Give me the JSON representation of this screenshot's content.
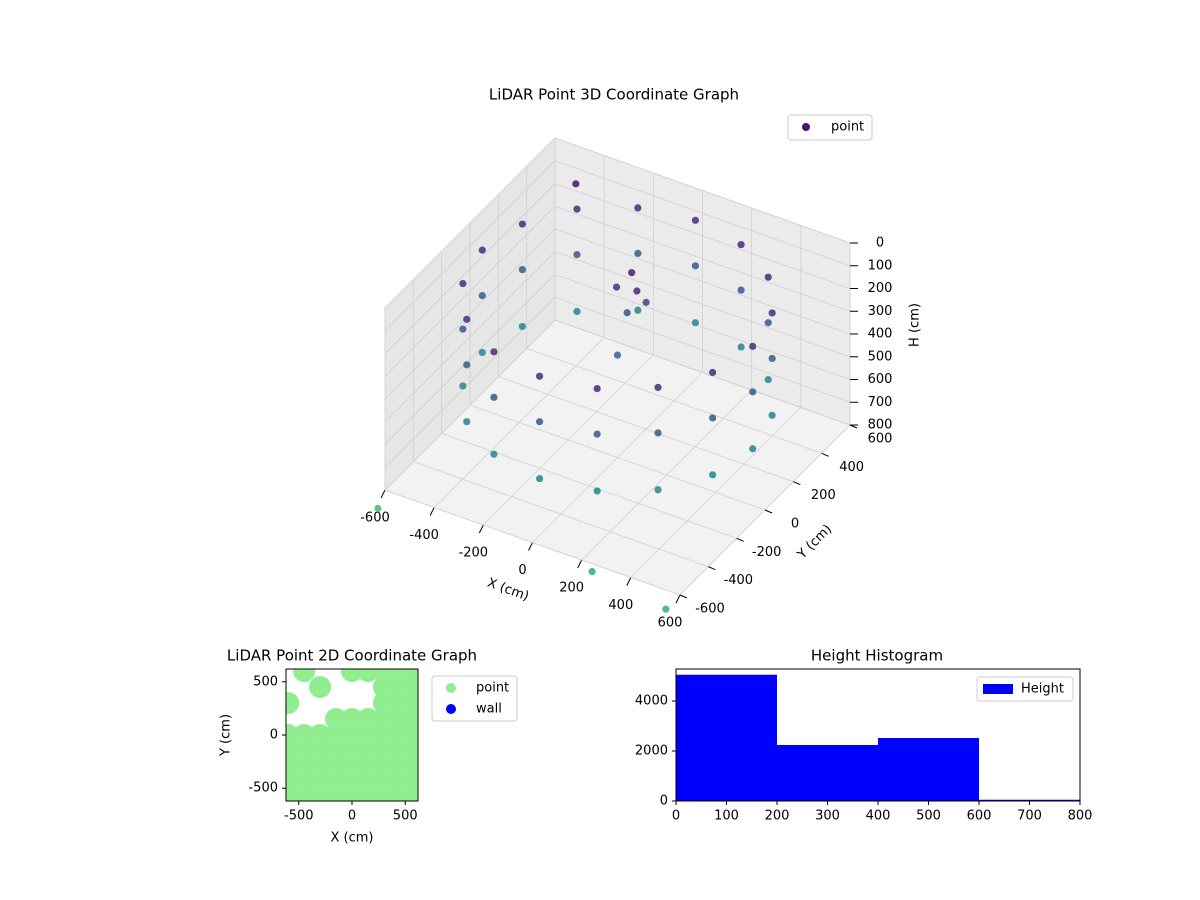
{
  "chart_data": [
    {
      "type": "scatter3d",
      "title": "LiDAR Point 3D Coordinate Graph",
      "xlabel": "X (cm)",
      "ylabel": "Y (cm)",
      "zlabel": "H (cm)",
      "xlim": [
        -600,
        600
      ],
      "xticks": [
        -600,
        -400,
        -200,
        0,
        200,
        400,
        600
      ],
      "ylim": [
        -600,
        600
      ],
      "yticks": [
        -600,
        -400,
        -200,
        0,
        200,
        400,
        600
      ],
      "zlim": [
        0,
        800
      ],
      "zticks": [
        0,
        100,
        200,
        300,
        400,
        500,
        600,
        700,
        800
      ],
      "zinverted": true,
      "grid": true,
      "legend": "upper right",
      "series": [
        {
          "name": "point",
          "color": "#46137a",
          "colormap": "viridis",
          "x": [
            550,
            508,
            389,
            210,
            0,
            -210,
            -389,
            -508,
            -550,
            -508,
            -389,
            -210,
            0,
            210,
            389,
            508,
            550,
            508,
            389,
            210,
            0,
            -210,
            -389,
            -508,
            -550,
            -508,
            -389,
            -210,
            0,
            210,
            389,
            508,
            550,
            508,
            389,
            210,
            0,
            -210,
            -389,
            -508,
            -550,
            -508,
            -389,
            -210,
            0,
            210,
            389,
            508,
            0,
            50,
            -50,
            30,
            -30,
            0,
            600,
            -600,
            300,
            -400
          ],
          "y": [
            0,
            210,
            389,
            508,
            550,
            508,
            389,
            210,
            0,
            -210,
            -389,
            -508,
            -550,
            -508,
            -389,
            -210,
            0,
            210,
            389,
            508,
            550,
            508,
            389,
            210,
            0,
            -210,
            -389,
            -508,
            -550,
            -508,
            -389,
            -210,
            0,
            210,
            389,
            508,
            550,
            508,
            389,
            210,
            0,
            -210,
            -389,
            -508,
            -550,
            -508,
            -389,
            -210,
            100,
            50,
            80,
            150,
            120,
            0,
            -700,
            -650,
            -700,
            400
          ],
          "z": [
            100,
            100,
            100,
            100,
            100,
            100,
            100,
            100,
            100,
            100,
            100,
            100,
            100,
            100,
            100,
            100,
            300,
            300,
            300,
            300,
            300,
            300,
            300,
            300,
            300,
            300,
            300,
            300,
            300,
            300,
            300,
            300,
            550,
            550,
            550,
            550,
            550,
            550,
            550,
            550,
            550,
            550,
            550,
            550,
            550,
            550,
            550,
            550,
            50,
            80,
            120,
            200,
            250,
            350,
            800,
            850,
            750,
            0
          ]
        }
      ]
    },
    {
      "type": "scatter",
      "title": "LiDAR Point 2D Coordinate Graph",
      "xlabel": "X (cm)",
      "ylabel": "Y (cm)",
      "xlim": [
        -620,
        620
      ],
      "xticks": [
        -500,
        0,
        500
      ],
      "ylim": [
        -620,
        620
      ],
      "yticks": [
        -500,
        0,
        500
      ],
      "legend": "outside right",
      "series": [
        {
          "name": "point",
          "color": "#90ee90",
          "x": [
            -600,
            -450,
            -300,
            -150,
            0,
            150,
            300,
            450,
            600,
            -600,
            -450,
            -300,
            -150,
            0,
            150,
            300,
            450,
            600,
            -600,
            -450,
            -300,
            -150,
            0,
            150,
            300,
            450,
            600,
            -600,
            -450,
            -300,
            -150,
            0,
            150,
            300,
            450,
            600,
            -600,
            -450,
            -300,
            -150,
            0,
            150,
            300,
            450,
            600,
            -150,
            0,
            150,
            300,
            450,
            600,
            -600,
            300,
            450,
            600,
            -300,
            300,
            450,
            600,
            -450,
            0,
            150,
            300,
            450,
            600
          ],
          "y": [
            -600,
            -600,
            -600,
            -600,
            -600,
            -600,
            -600,
            -600,
            -600,
            -450,
            -450,
            -450,
            -450,
            -450,
            -450,
            -450,
            -450,
            -450,
            -300,
            -300,
            -300,
            -300,
            -300,
            -300,
            -300,
            -300,
            -300,
            -150,
            -150,
            -150,
            -150,
            -150,
            -150,
            -150,
            -150,
            -150,
            0,
            0,
            0,
            0,
            0,
            0,
            0,
            0,
            0,
            150,
            150,
            150,
            150,
            150,
            150,
            300,
            300,
            300,
            300,
            450,
            450,
            450,
            450,
            600,
            600,
            600,
            600,
            600,
            600
          ]
        },
        {
          "name": "wall",
          "color": "#0000ff",
          "x": [],
          "y": []
        }
      ]
    },
    {
      "type": "histogram",
      "title": "Height Histogram",
      "bins": [
        0,
        200,
        400,
        600,
        800
      ],
      "xlim": [
        0,
        800
      ],
      "xticks": [
        0,
        100,
        200,
        300,
        400,
        500,
        600,
        700,
        800
      ],
      "ylim": [
        0,
        5280
      ],
      "yticks": [
        0,
        2000,
        4000
      ],
      "legend": "upper right",
      "series": [
        {
          "name": "Height",
          "color": "#0000ff",
          "values": [
            5050,
            2240,
            2520,
            50
          ]
        }
      ]
    }
  ]
}
